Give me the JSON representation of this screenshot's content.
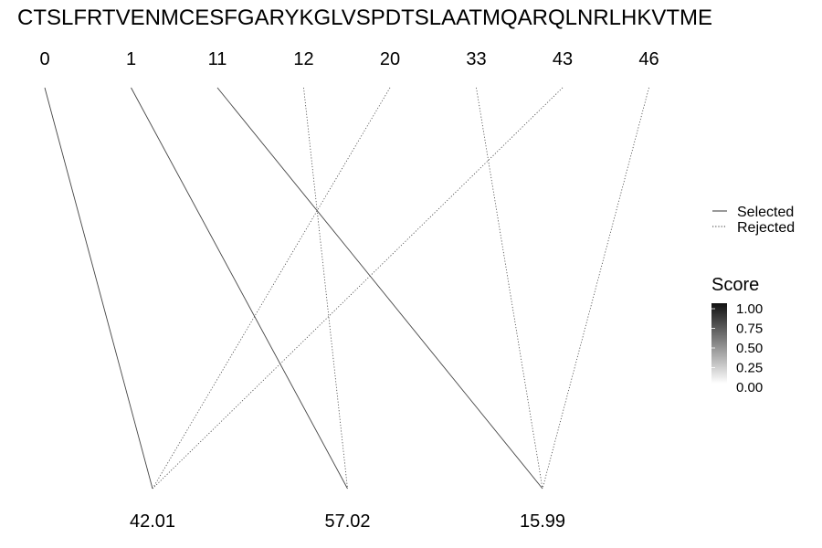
{
  "sequence": "CTSLFRTVENMCESFGARYKGLVSPDTSLAATMQARQLNRLHKVTME",
  "top_positions": [
    "0",
    "1",
    "11",
    "12",
    "20",
    "33",
    "43",
    "46"
  ],
  "bottom_masses": [
    "42.01",
    "57.02",
    "15.99"
  ],
  "links": [
    {
      "from": 0,
      "to": 0,
      "status": "selected"
    },
    {
      "from": 1,
      "to": 1,
      "status": "selected"
    },
    {
      "from": 2,
      "to": 2,
      "status": "selected"
    },
    {
      "from": 3,
      "to": 1,
      "status": "rejected"
    },
    {
      "from": 4,
      "to": 0,
      "status": "rejected"
    },
    {
      "from": 5,
      "to": 2,
      "status": "rejected"
    },
    {
      "from": 6,
      "to": 0,
      "status": "rejected"
    },
    {
      "from": 7,
      "to": 2,
      "status": "rejected"
    }
  ],
  "legend": {
    "linetype": [
      {
        "label": "Selected",
        "style": "solid"
      },
      {
        "label": "Rejected",
        "style": "dotted"
      }
    ],
    "score": {
      "title": "Score",
      "ticks": [
        "1.00",
        "0.75",
        "0.50",
        "0.25",
        "0.00"
      ],
      "color_high": "#111111",
      "color_low": "#ffffff"
    }
  }
}
